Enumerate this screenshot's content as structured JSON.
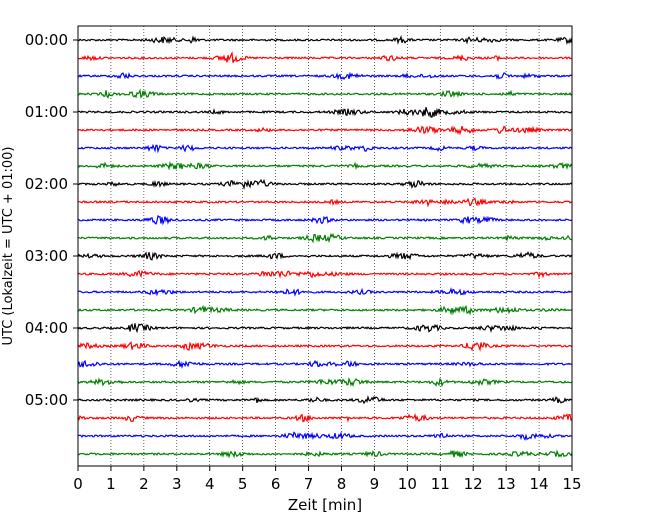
{
  "chart_data": {
    "type": "line",
    "title": "",
    "xlabel": "Zeit  [min]",
    "ylabel": "UTC (Lokalzeit = UTC + 01:00)",
    "xlim": [
      0,
      15
    ],
    "x_ticks": [
      "0",
      "1",
      "2",
      "3",
      "4",
      "5",
      "6",
      "7",
      "8",
      "9",
      "10",
      "11",
      "12",
      "13",
      "14",
      "15"
    ],
    "y_ticks": [
      "00:00",
      "01:00",
      "02:00",
      "03:00",
      "04:00",
      "05:00"
    ],
    "grid": "vertical dotted",
    "trace_interval_minutes": 15,
    "trace_count": 24,
    "color_cycle": [
      "#000000",
      "#ff0000",
      "#0000ff",
      "#008000"
    ]
  }
}
